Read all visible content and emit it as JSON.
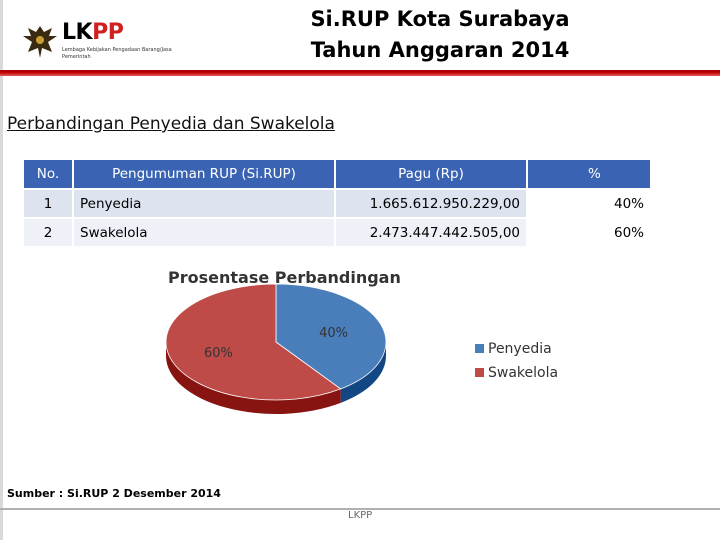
{
  "header": {
    "logo_word_black": "LK",
    "logo_word_red": "PP",
    "logo_subtitle": "Lembaga Kebijakan Pengadaan Barang/Jasa Pemerintah",
    "title_line1": "Si.RUP Kota Surabaya",
    "title_line2": "Tahun Anggaran 2014"
  },
  "section_title": "Perbandingan Penyedia dan Swakelola",
  "table": {
    "headers": [
      "No.",
      "Pengumuman RUP (Si.RUP)",
      "Pagu (Rp)",
      "%"
    ],
    "rows": [
      {
        "no": "1",
        "name": "Penyedia",
        "pagu": "1.665.612.950.229,00",
        "pct": "40%"
      },
      {
        "no": "2",
        "name": "Swakelola",
        "pagu": "2.473.447.442.505,00",
        "pct": "60%"
      }
    ]
  },
  "chart_data": {
    "type": "pie",
    "title": "Prosentase Perbandingan",
    "labels": [
      "Penyedia",
      "Swakelola"
    ],
    "values": [
      40,
      60
    ],
    "data_labels": [
      "40%",
      "60%"
    ],
    "colors": [
      "#4a7ebb",
      "#be4b48"
    ],
    "legend_position": "right",
    "three_d": true
  },
  "source_note": "Sumber : Si.RUP  2 Desember 2014",
  "footer_label": "LKPP"
}
